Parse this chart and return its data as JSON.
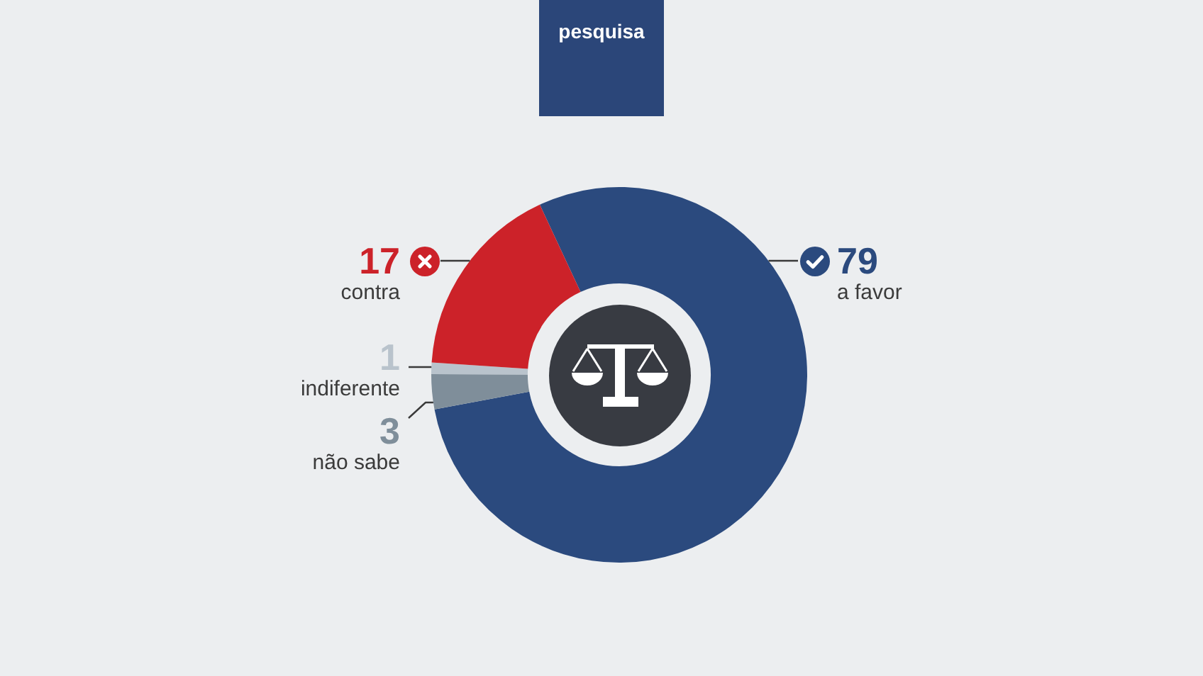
{
  "chart_data": {
    "type": "donut",
    "title": "pesquisa",
    "categories": [
      "a favor",
      "não sabe",
      "indiferente",
      "contra"
    ],
    "values": [
      79,
      3,
      1,
      17
    ],
    "colors": [
      "#2b4a7e",
      "#7f8e9a",
      "#b9c3cc",
      "#cc2229"
    ],
    "data_labels": true
  }
}
